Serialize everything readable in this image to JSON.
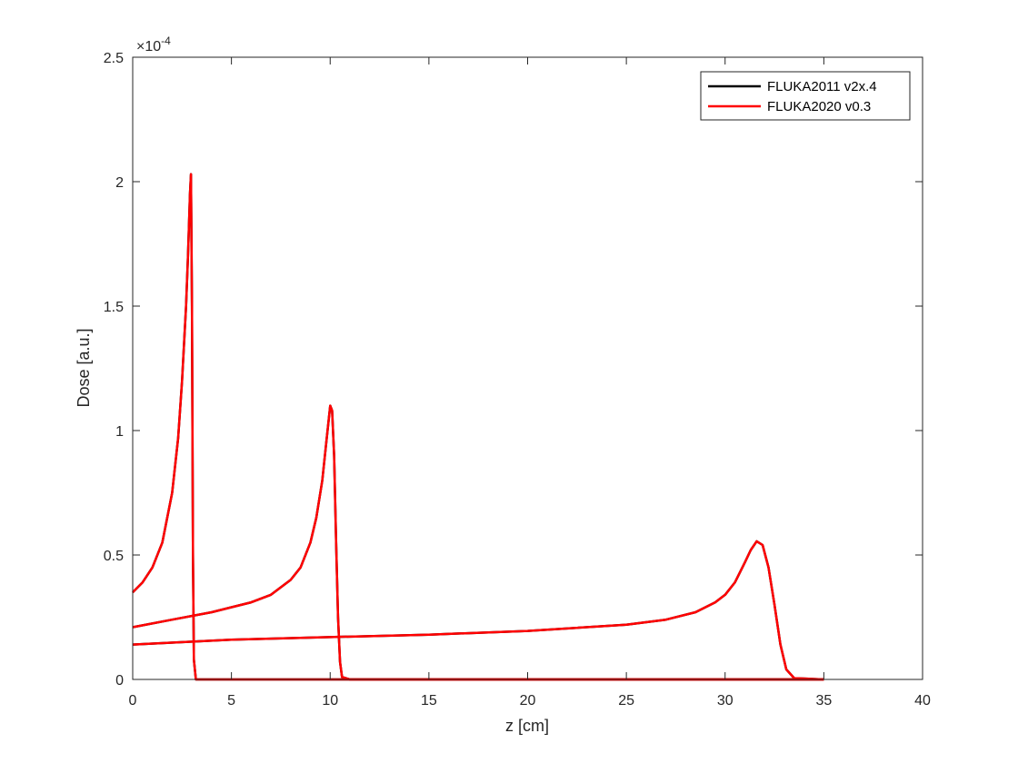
{
  "chart_data": {
    "type": "line",
    "xlabel": "z [cm]",
    "ylabel": "Dose [a.u.]",
    "xlim": [
      0,
      40
    ],
    "ylim": [
      0,
      2.5
    ],
    "y_exponent_label": "×10",
    "y_exponent_power": "-4",
    "x_ticks": [
      0,
      5,
      10,
      15,
      20,
      25,
      30,
      35,
      40
    ],
    "x_tick_labels": [
      "0",
      "5",
      "10",
      "15",
      "20",
      "25",
      "30",
      "35",
      "40"
    ],
    "y_ticks": [
      0,
      0.5,
      1,
      1.5,
      2,
      2.5
    ],
    "y_tick_labels": [
      "0",
      "0.5",
      "1",
      "1.5",
      "2",
      "2.5"
    ],
    "grid": false,
    "legend_position": "top-right",
    "legend": [
      "FLUKA2011 v2x.4",
      "FLUKA2020 v0.3"
    ],
    "colors": {
      "FLUKA2011 v2x.4": "#000000",
      "FLUKA2020 v0.3": "#ff0000"
    },
    "series": [
      {
        "name": "FLUKA2011 v2x.4",
        "color": "#000000",
        "curves": [
          {
            "x": [
              0,
              0.5,
              1.0,
              1.5,
              2.0,
              2.3,
              2.5,
              2.7,
              2.8,
              2.9,
              2.95,
              3.0,
              3.05,
              3.1,
              3.2,
              3.5,
              35
            ],
            "y": [
              0.35,
              0.39,
              0.45,
              0.55,
              0.75,
              0.97,
              1.2,
              1.5,
              1.7,
              1.95,
              2.03,
              1.5,
              0.5,
              0.08,
              0,
              0,
              0
            ]
          },
          {
            "x": [
              0,
              2,
              4,
              6,
              7,
              8,
              8.5,
              9,
              9.3,
              9.6,
              9.8,
              10.0,
              10.1,
              10.2,
              10.3,
              10.4,
              10.5,
              10.6,
              11,
              35
            ],
            "y": [
              0.21,
              0.24,
              0.27,
              0.31,
              0.34,
              0.4,
              0.45,
              0.55,
              0.65,
              0.8,
              0.95,
              1.1,
              1.08,
              0.9,
              0.55,
              0.25,
              0.07,
              0.01,
              0,
              0
            ]
          },
          {
            "x": [
              0,
              5,
              10,
              15,
              20,
              25,
              27,
              28.5,
              29.5,
              30,
              30.5,
              31,
              31.3,
              31.6,
              31.9,
              32.2,
              32.5,
              32.8,
              33.1,
              33.5,
              35
            ],
            "y": [
              0.14,
              0.16,
              0.17,
              0.18,
              0.195,
              0.22,
              0.24,
              0.27,
              0.31,
              0.34,
              0.39,
              0.47,
              0.52,
              0.555,
              0.54,
              0.45,
              0.3,
              0.14,
              0.04,
              0.005,
              0
            ]
          }
        ]
      },
      {
        "name": "FLUKA2020 v0.3",
        "color": "#ff0000",
        "curves": [
          {
            "x": [
              0,
              0.5,
              1.0,
              1.5,
              2.0,
              2.3,
              2.5,
              2.7,
              2.8,
              2.9,
              2.95,
              3.0,
              3.05,
              3.1,
              3.2,
              3.5,
              35
            ],
            "y": [
              0.35,
              0.39,
              0.45,
              0.55,
              0.75,
              0.97,
              1.2,
              1.5,
              1.7,
              1.95,
              2.03,
              1.5,
              0.5,
              0.08,
              0,
              0,
              0
            ]
          },
          {
            "x": [
              0,
              2,
              4,
              6,
              7,
              8,
              8.5,
              9,
              9.3,
              9.6,
              9.8,
              10.0,
              10.1,
              10.2,
              10.3,
              10.4,
              10.5,
              10.6,
              11,
              35
            ],
            "y": [
              0.21,
              0.24,
              0.27,
              0.31,
              0.34,
              0.4,
              0.45,
              0.55,
              0.65,
              0.8,
              0.95,
              1.1,
              1.08,
              0.9,
              0.55,
              0.25,
              0.07,
              0.01,
              0,
              0
            ]
          },
          {
            "x": [
              0,
              5,
              10,
              15,
              20,
              25,
              27,
              28.5,
              29.5,
              30,
              30.5,
              31,
              31.3,
              31.6,
              31.9,
              32.2,
              32.5,
              32.8,
              33.1,
              33.5,
              35
            ],
            "y": [
              0.14,
              0.16,
              0.17,
              0.18,
              0.195,
              0.22,
              0.24,
              0.27,
              0.31,
              0.34,
              0.39,
              0.47,
              0.52,
              0.555,
              0.54,
              0.45,
              0.3,
              0.14,
              0.04,
              0.005,
              0
            ]
          }
        ]
      }
    ]
  }
}
